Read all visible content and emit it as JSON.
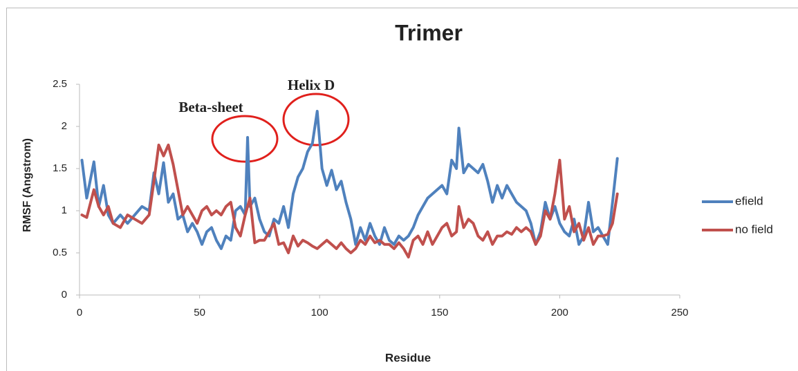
{
  "chart_data": {
    "type": "line",
    "title": "Trimer",
    "xlabel": "Residue",
    "ylabel": "RMSF (Angstrom)",
    "x": [
      1,
      3,
      6,
      8,
      10,
      12,
      14,
      17,
      20,
      23,
      26,
      29,
      31,
      33,
      35,
      37,
      39,
      41,
      43,
      45,
      47,
      49,
      51,
      53,
      55,
      57,
      59,
      61,
      63,
      65,
      67,
      69,
      70,
      71,
      73,
      75,
      77,
      79,
      81,
      83,
      85,
      87,
      89,
      91,
      93,
      95,
      97,
      99,
      101,
      103,
      105,
      107,
      109,
      111,
      113,
      115,
      117,
      119,
      121,
      123,
      125,
      127,
      129,
      131,
      133,
      135,
      137,
      139,
      141,
      143,
      145,
      147,
      149,
      151,
      153,
      155,
      157,
      158,
      160,
      162,
      164,
      166,
      168,
      170,
      172,
      174,
      176,
      178,
      180,
      182,
      184,
      186,
      188,
      190,
      192,
      194,
      196,
      198,
      200,
      202,
      204,
      206,
      208,
      210,
      212,
      214,
      216,
      218,
      220,
      222,
      224
    ],
    "series": [
      {
        "name": "efield",
        "color": "#4f81bd",
        "values": [
          1.6,
          1.15,
          1.58,
          1.05,
          1.3,
          0.95,
          0.85,
          0.95,
          0.85,
          0.95,
          1.05,
          1.0,
          1.45,
          1.2,
          1.57,
          1.1,
          1.2,
          0.9,
          0.95,
          0.75,
          0.85,
          0.75,
          0.6,
          0.75,
          0.8,
          0.65,
          0.55,
          0.7,
          0.65,
          1.0,
          1.05,
          0.95,
          1.87,
          1.05,
          1.15,
          0.9,
          0.75,
          0.7,
          0.9,
          0.85,
          1.05,
          0.8,
          1.2,
          1.4,
          1.5,
          1.7,
          1.8,
          2.18,
          1.5,
          1.3,
          1.48,
          1.25,
          1.35,
          1.1,
          0.9,
          0.6,
          0.8,
          0.65,
          0.85,
          0.7,
          0.6,
          0.8,
          0.65,
          0.6,
          0.7,
          0.65,
          0.7,
          0.8,
          0.95,
          1.05,
          1.15,
          1.2,
          1.25,
          1.3,
          1.2,
          1.6,
          1.5,
          1.98,
          1.45,
          1.55,
          1.5,
          1.45,
          1.55,
          1.35,
          1.1,
          1.3,
          1.15,
          1.3,
          1.2,
          1.1,
          1.05,
          1.0,
          0.85,
          0.6,
          0.75,
          1.1,
          0.9,
          1.05,
          0.85,
          0.75,
          0.7,
          0.9,
          0.6,
          0.7,
          1.1,
          0.75,
          0.8,
          0.7,
          0.6,
          1.1,
          1.62
        ]
      },
      {
        "name": "no field",
        "color": "#c0504d",
        "values": [
          0.95,
          0.92,
          1.25,
          1.05,
          0.95,
          1.05,
          0.85,
          0.8,
          0.95,
          0.9,
          0.85,
          0.95,
          1.35,
          1.78,
          1.65,
          1.78,
          1.55,
          1.25,
          0.95,
          1.05,
          0.95,
          0.85,
          1.0,
          1.05,
          0.95,
          1.0,
          0.95,
          1.05,
          1.1,
          0.8,
          0.7,
          0.95,
          1.05,
          1.15,
          0.62,
          0.65,
          0.65,
          0.75,
          0.85,
          0.6,
          0.62,
          0.5,
          0.7,
          0.58,
          0.65,
          0.62,
          0.58,
          0.55,
          0.6,
          0.65,
          0.6,
          0.55,
          0.62,
          0.55,
          0.5,
          0.55,
          0.65,
          0.6,
          0.7,
          0.62,
          0.65,
          0.6,
          0.6,
          0.55,
          0.62,
          0.55,
          0.45,
          0.65,
          0.7,
          0.6,
          0.75,
          0.6,
          0.7,
          0.8,
          0.85,
          0.7,
          0.75,
          1.05,
          0.8,
          0.9,
          0.85,
          0.7,
          0.65,
          0.75,
          0.6,
          0.7,
          0.7,
          0.75,
          0.72,
          0.8,
          0.75,
          0.8,
          0.75,
          0.6,
          0.7,
          1.0,
          0.9,
          1.2,
          1.6,
          0.9,
          1.05,
          0.75,
          0.85,
          0.65,
          0.8,
          0.6,
          0.7,
          0.7,
          0.72,
          0.85,
          1.2
        ]
      }
    ],
    "xlim": [
      0,
      250
    ],
    "xticks": [
      0,
      50,
      100,
      150,
      200,
      250
    ],
    "ylim": [
      0,
      2.5
    ],
    "yticks": [
      0,
      0.5,
      1,
      1.5,
      2,
      2.5
    ],
    "annotations": [
      "Beta-sheet",
      "Helix D"
    ]
  }
}
